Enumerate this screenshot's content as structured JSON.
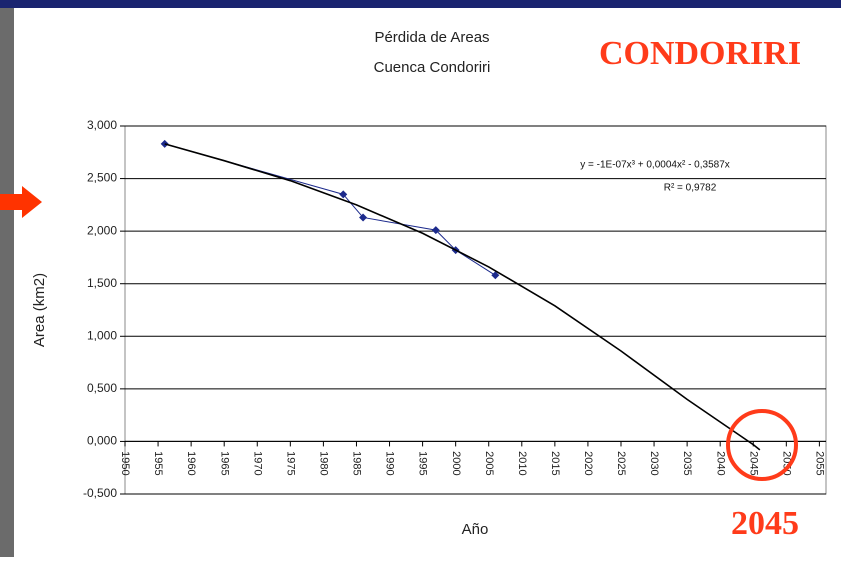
{
  "chart_data": {
    "type": "line",
    "title": "Pérdida de Areas",
    "subtitle": "Cuenca Condoriri",
    "x_label": "Año",
    "y_label": "Area (km2)",
    "annotations": [
      "CONDORIRI",
      "2045",
      "y = -1E-07x³ + 0,0004x² - 0,3587x",
      "R² = 0,9782"
    ],
    "xlim": [
      1950,
      2056
    ],
    "ylim": [
      -0.5,
      3
    ],
    "xticks": [
      1950,
      1955,
      1960,
      1965,
      1970,
      1975,
      1980,
      1985,
      1990,
      1995,
      2000,
      2005,
      2010,
      2015,
      2020,
      2025,
      2030,
      2035,
      2040,
      2045,
      2050,
      2055
    ],
    "yticks": [
      {
        "value": -0.5,
        "label": "-0,500"
      },
      {
        "value": 0,
        "label": "0,000"
      },
      {
        "value": 0.5,
        "label": "0,500"
      },
      {
        "value": 1,
        "label": "1,000"
      },
      {
        "value": 1.5,
        "label": "1,500"
      },
      {
        "value": 2,
        "label": "2,000"
      },
      {
        "value": 2.5,
        "label": "2,500"
      },
      {
        "value": 3,
        "label": "3,000"
      }
    ],
    "grid": true,
    "series": [
      {
        "color": "#1c2a8c",
        "markers": true,
        "x": [
          1956,
          1983,
          1986,
          1997,
          2000,
          2006
        ],
        "values": [
          2.83,
          2.35,
          2.13,
          2.01,
          1.82,
          1.58
        ]
      },
      {
        "color": "#000000",
        "markers": false,
        "x": [
          1956,
          1965,
          1975,
          1985,
          1995,
          2005,
          2015,
          2025,
          2035,
          2045,
          2046
        ],
        "values": [
          2.83,
          2.67,
          2.48,
          2.25,
          1.98,
          1.66,
          1.29,
          0.86,
          0.4,
          -0.03,
          -0.08
        ]
      }
    ]
  }
}
